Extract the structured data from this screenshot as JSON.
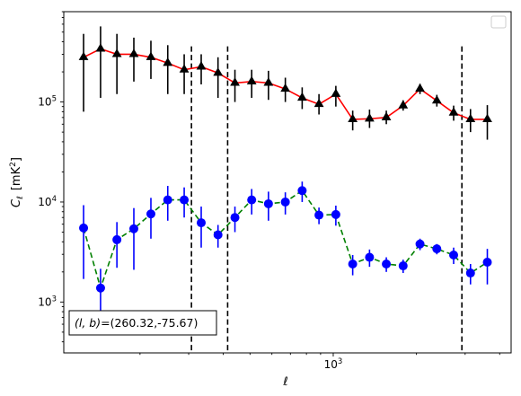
{
  "chart_data": {
    "type": "scatter",
    "xlabel": "ℓ",
    "ylabel_main": "C",
    "ylabel_sub": "ℓ",
    "ylabel_unit_pre": "[mK",
    "ylabel_unit_exp": "2",
    "ylabel_unit_post": "]",
    "xscale": "log",
    "yscale": "log",
    "xlim": [
      106,
      4400
    ],
    "ylim": [
      310,
      800000
    ],
    "x_ticks": [
      {
        "value": 1000,
        "base": "10",
        "exp": "3"
      }
    ],
    "y_ticks": [
      {
        "value": 1000,
        "base": "10",
        "exp": "3"
      },
      {
        "value": 10000,
        "base": "10",
        "exp": "4"
      },
      {
        "value": 100000,
        "base": "10",
        "exp": "5"
      }
    ],
    "vlines": [
      307,
      415,
      2920
    ],
    "annotation": {
      "text": "(l,b)=(260.32,-75.67)",
      "lb_label": "(l, b)",
      "value": "=(260.32,-75.67)"
    },
    "legend": {
      "position": "top-right",
      "entries": []
    },
    "series": [
      {
        "marker": "triangle",
        "color": "#000000",
        "line_color": "#ff0000",
        "line_style": "solid",
        "points": [
          {
            "x": 125,
            "y": 280000,
            "lo": 80000,
            "hi": 480000
          },
          {
            "x": 144,
            "y": 340000,
            "lo": 110000,
            "hi": 570000
          },
          {
            "x": 165,
            "y": 300000,
            "lo": 120000,
            "hi": 480000
          },
          {
            "x": 190,
            "y": 300000,
            "lo": 160000,
            "hi": 440000
          },
          {
            "x": 219,
            "y": 280000,
            "lo": 170000,
            "hi": 410000
          },
          {
            "x": 252,
            "y": 245000,
            "lo": 120000,
            "hi": 370000
          },
          {
            "x": 289,
            "y": 210000,
            "lo": 120000,
            "hi": 300000
          },
          {
            "x": 333,
            "y": 225000,
            "lo": 150000,
            "hi": 300000
          },
          {
            "x": 383,
            "y": 195000,
            "lo": 110000,
            "hi": 280000
          },
          {
            "x": 441,
            "y": 155000,
            "lo": 100000,
            "hi": 210000
          },
          {
            "x": 507,
            "y": 160000,
            "lo": 110000,
            "hi": 210000
          },
          {
            "x": 583,
            "y": 155000,
            "lo": 105000,
            "hi": 205000
          },
          {
            "x": 671,
            "y": 135000,
            "lo": 100000,
            "hi": 175000
          },
          {
            "x": 772,
            "y": 110000,
            "lo": 85000,
            "hi": 140000
          },
          {
            "x": 888,
            "y": 95000,
            "lo": 75000,
            "hi": 120000
          },
          {
            "x": 1022,
            "y": 120000,
            "lo": 90000,
            "hi": 145000
          },
          {
            "x": 1176,
            "y": 67000,
            "lo": 52000,
            "hi": 82000
          },
          {
            "x": 1353,
            "y": 68000,
            "lo": 55000,
            "hi": 84000
          },
          {
            "x": 1556,
            "y": 70000,
            "lo": 60000,
            "hi": 82000
          },
          {
            "x": 1790,
            "y": 92000,
            "lo": 82000,
            "hi": 104000
          },
          {
            "x": 2060,
            "y": 135000,
            "lo": 120000,
            "hi": 152000
          },
          {
            "x": 2370,
            "y": 103000,
            "lo": 90000,
            "hi": 118000
          },
          {
            "x": 2726,
            "y": 78000,
            "lo": 65000,
            "hi": 92000
          },
          {
            "x": 3137,
            "y": 67000,
            "lo": 50000,
            "hi": 85000
          },
          {
            "x": 3609,
            "y": 67000,
            "lo": 42000,
            "hi": 93000
          }
        ]
      },
      {
        "marker": "circle",
        "color": "#0000ff",
        "line_color": "#008000",
        "line_style": "dashed",
        "points": [
          {
            "x": 125,
            "y": 5500,
            "lo": 1700,
            "hi": 9300
          },
          {
            "x": 144,
            "y": 1380,
            "lo": 600,
            "hi": 2150
          },
          {
            "x": 165,
            "y": 4200,
            "lo": 2200,
            "hi": 6300
          },
          {
            "x": 190,
            "y": 5400,
            "lo": 2100,
            "hi": 8700
          },
          {
            "x": 219,
            "y": 7600,
            "lo": 4300,
            "hi": 11000
          },
          {
            "x": 252,
            "y": 10500,
            "lo": 6500,
            "hi": 14500
          },
          {
            "x": 289,
            "y": 10500,
            "lo": 7000,
            "hi": 14000
          },
          {
            "x": 333,
            "y": 6200,
            "lo": 3500,
            "hi": 9000
          },
          {
            "x": 383,
            "y": 4700,
            "lo": 3500,
            "hi": 5900
          },
          {
            "x": 441,
            "y": 7000,
            "lo": 5000,
            "hi": 9000
          },
          {
            "x": 507,
            "y": 10500,
            "lo": 7500,
            "hi": 13500
          },
          {
            "x": 583,
            "y": 9600,
            "lo": 6500,
            "hi": 12700
          },
          {
            "x": 671,
            "y": 10000,
            "lo": 7500,
            "hi": 12500
          },
          {
            "x": 772,
            "y": 13000,
            "lo": 10000,
            "hi": 16000
          },
          {
            "x": 888,
            "y": 7400,
            "lo": 6000,
            "hi": 8800
          },
          {
            "x": 1022,
            "y": 7500,
            "lo": 5800,
            "hi": 9200
          },
          {
            "x": 1176,
            "y": 2400,
            "lo": 1850,
            "hi": 2950
          },
          {
            "x": 1353,
            "y": 2800,
            "lo": 2250,
            "hi": 3350
          },
          {
            "x": 1556,
            "y": 2400,
            "lo": 2000,
            "hi": 2800
          },
          {
            "x": 1790,
            "y": 2300,
            "lo": 1950,
            "hi": 2650
          },
          {
            "x": 2060,
            "y": 3800,
            "lo": 3300,
            "hi": 4300
          },
          {
            "x": 2370,
            "y": 3400,
            "lo": 3000,
            "hi": 3800
          },
          {
            "x": 2726,
            "y": 2950,
            "lo": 2400,
            "hi": 3500
          },
          {
            "x": 3137,
            "y": 1950,
            "lo": 1500,
            "hi": 2400
          },
          {
            "x": 3609,
            "y": 2500,
            "lo": 1500,
            "hi": 3400
          }
        ]
      }
    ]
  }
}
